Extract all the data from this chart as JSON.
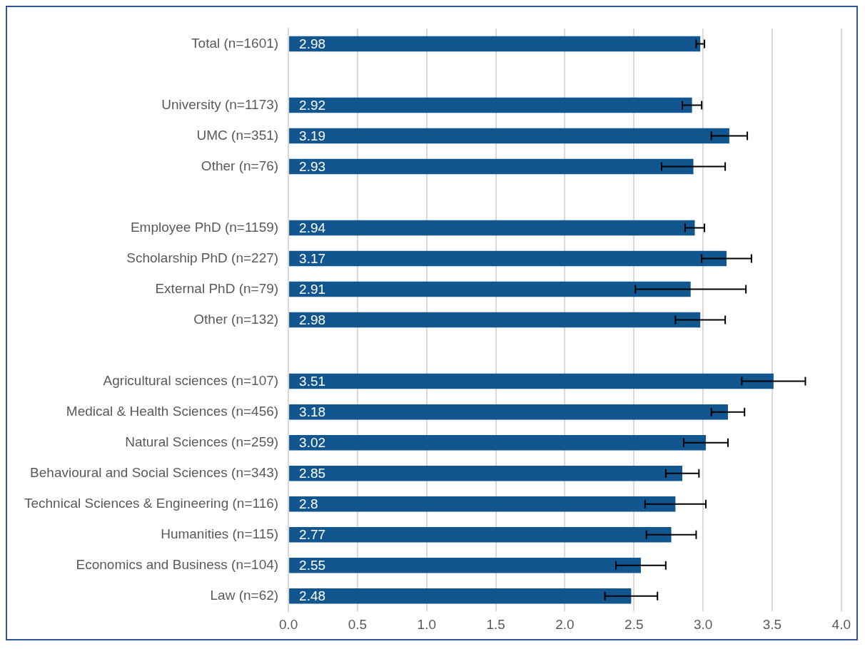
{
  "chart_data": {
    "type": "bar",
    "orientation": "horizontal",
    "categories": [
      "Total (n=1601)",
      null,
      "University (n=1173)",
      "UMC (n=351)",
      "Other (n=76)",
      null,
      "Employee PhD (n=1159)",
      "Scholarship PhD (n=227)",
      "External PhD (n=79)",
      "Other (n=132)",
      null,
      "Agricultural sciences (n=107)",
      "Medical & Health Sciences (n=456)",
      "Natural Sciences (n=259)",
      "Behavioural and Social Sciences (n=343)",
      "Technical Sciences & Engineering (n=116)",
      "Humanities (n=115)",
      "Economics and Business (n=104)",
      "Law (n=62)"
    ],
    "values": [
      2.98,
      null,
      2.92,
      3.19,
      2.93,
      null,
      2.94,
      3.17,
      2.91,
      2.98,
      null,
      3.51,
      3.18,
      3.02,
      2.85,
      2.8,
      2.77,
      2.55,
      2.48
    ],
    "errors": [
      0.03,
      null,
      0.07,
      0.13,
      0.23,
      null,
      0.07,
      0.18,
      0.4,
      0.18,
      null,
      0.23,
      0.12,
      0.16,
      0.12,
      0.22,
      0.18,
      0.18,
      0.19
    ],
    "color": "#12568f",
    "xlim": [
      0,
      4
    ],
    "xticks": [
      {
        "value": 0,
        "label": "0.0"
      },
      {
        "value": 0.5,
        "label": "0.5"
      },
      {
        "value": 1,
        "label": "1.0"
      },
      {
        "value": 1.5,
        "label": "1.5"
      },
      {
        "value": 2,
        "label": "2.0"
      },
      {
        "value": 2.5,
        "label": "2.5"
      },
      {
        "value": 3,
        "label": "3.0"
      },
      {
        "value": 3.5,
        "label": "3.5"
      },
      {
        "value": 4,
        "label": "4.0"
      }
    ],
    "grid": "x",
    "data_labels": true,
    "legend": false
  }
}
